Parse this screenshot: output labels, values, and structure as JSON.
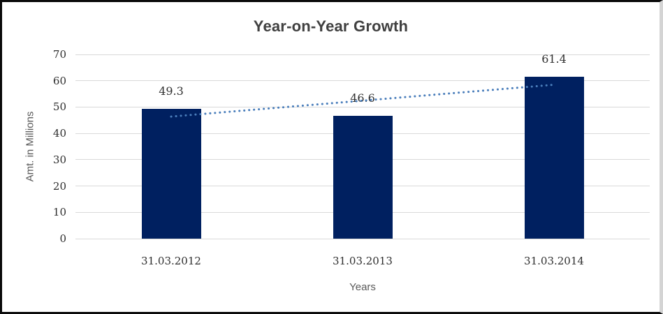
{
  "chart_data": {
    "type": "bar",
    "title": "Year-on-Year Growth",
    "categories": [
      "31.03.2012",
      "31.03.2013",
      "31.03.2014"
    ],
    "values": [
      49.3,
      46.6,
      61.4
    ],
    "data_labels": [
      "49.3",
      "46.6",
      "61.4"
    ],
    "xlabel": "Years",
    "ylabel": "Amt. in Millions",
    "ylim": [
      0,
      70
    ],
    "yticks": [
      0,
      10,
      20,
      30,
      40,
      50,
      60,
      70
    ],
    "grid": true,
    "legend": false,
    "trendline": {
      "type": "linear",
      "style": "dotted"
    },
    "colors": {
      "bar": "#002060",
      "trendline": "#4a7ebb",
      "gridline": "#d9d9d9",
      "title_text": "#404040",
      "tick_text": "#2e2e2e",
      "axis_title_text": "#595959",
      "background": "#ffffff"
    }
  }
}
